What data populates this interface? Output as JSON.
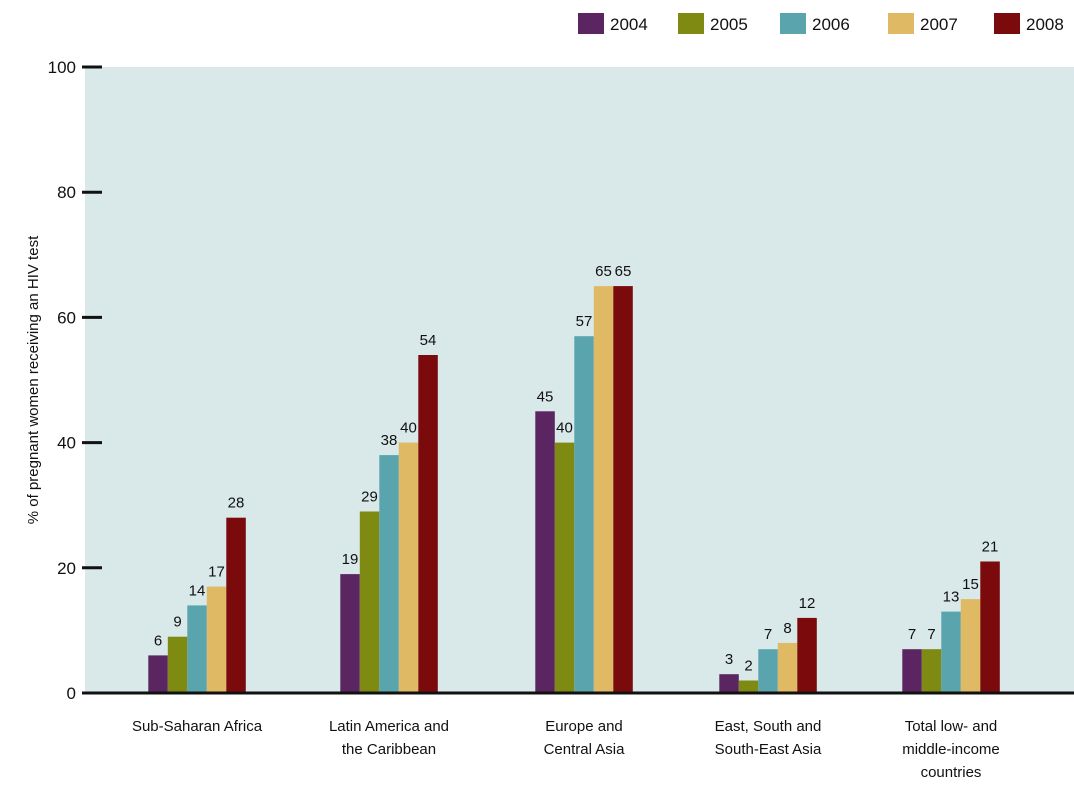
{
  "chart_data": {
    "type": "bar",
    "title": "",
    "xlabel": "",
    "ylabel": "% of pregnant women receiving an HIV test",
    "ylim": [
      0,
      100
    ],
    "yticks": [
      "0",
      "20",
      "40",
      "60",
      "80",
      "100"
    ],
    "grid": false,
    "legend_position": "top-right",
    "categories": [
      [
        "Sub-Saharan Africa"
      ],
      [
        "Latin America and",
        "the Caribbean"
      ],
      [
        "Europe and",
        "Central Asia"
      ],
      [
        "East, South and",
        "South-East Asia"
      ],
      [
        "Total low- and",
        "middle-income",
        "countries"
      ]
    ],
    "series": [
      {
        "name": "2004",
        "color": "#5b2561",
        "values": [
          6,
          19,
          45,
          3,
          7
        ]
      },
      {
        "name": "2005",
        "color": "#7f8a12",
        "values": [
          9,
          29,
          40,
          2,
          7
        ]
      },
      {
        "name": "2006",
        "color": "#5aa5ad",
        "values": [
          14,
          38,
          57,
          7,
          13
        ]
      },
      {
        "name": "2007",
        "color": "#e0b965",
        "values": [
          17,
          40,
          65,
          8,
          15
        ]
      },
      {
        "name": "2008",
        "color": "#7a0a0c",
        "values": [
          28,
          54,
          65,
          12,
          21
        ]
      }
    ],
    "plot_background": "#d9e8e9"
  }
}
